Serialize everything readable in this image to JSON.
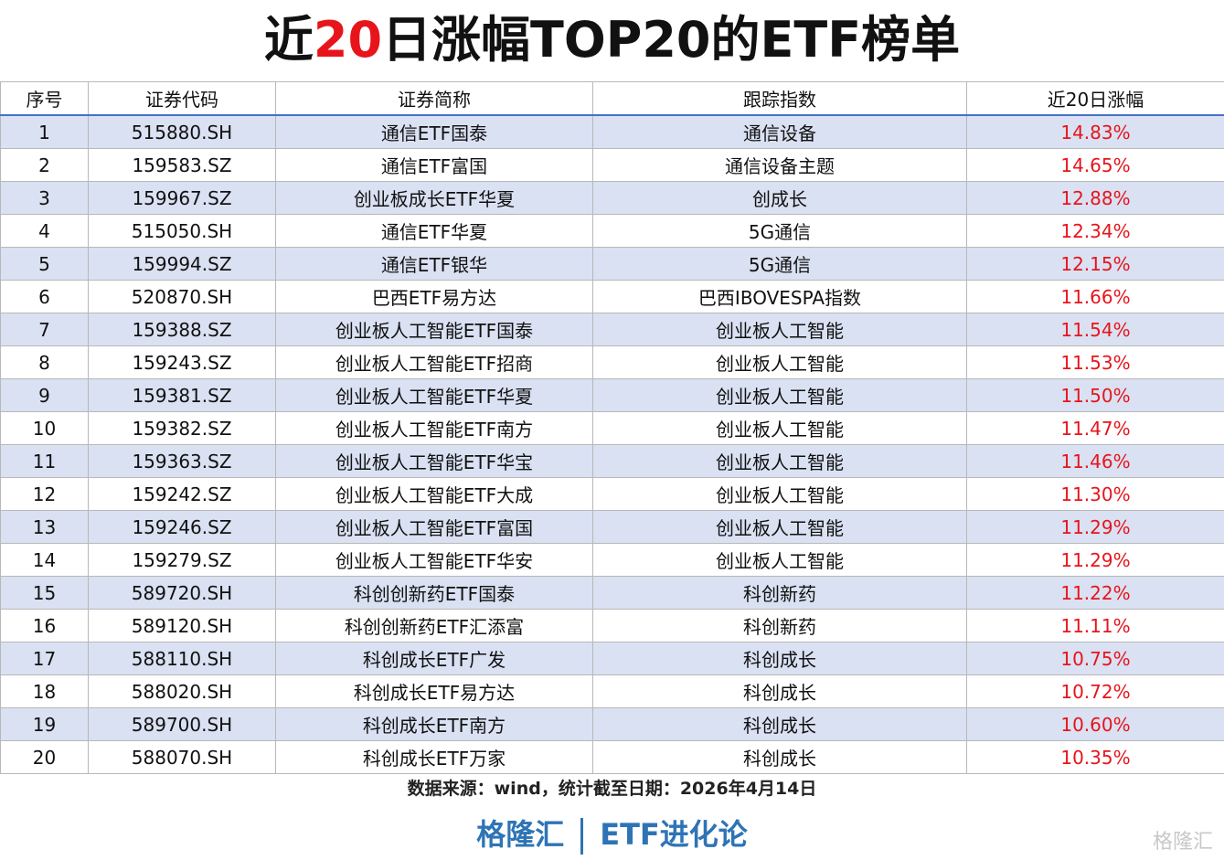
{
  "title": {
    "prefix": "近",
    "highlight": "20",
    "suffix": "日涨幅TOP20的ETF榜单"
  },
  "table": {
    "header": [
      "序号",
      "证券代码",
      "证券简称",
      "跟踪指数",
      "近20日涨幅"
    ],
    "rows": [
      [
        "1",
        "515880.SH",
        "通信ETF国泰",
        "通信设备",
        "14.83%"
      ],
      [
        "2",
        "159583.SZ",
        "通信ETF富国",
        "通信设备主题",
        "14.65%"
      ],
      [
        "3",
        "159967.SZ",
        "创业板成长ETF华夏",
        "创成长",
        "12.88%"
      ],
      [
        "4",
        "515050.SH",
        "通信ETF华夏",
        "5G通信",
        "12.34%"
      ],
      [
        "5",
        "159994.SZ",
        "通信ETF银华",
        "5G通信",
        "12.15%"
      ],
      [
        "6",
        "520870.SH",
        "巴西ETF易方达",
        "巴西IBOVESPA指数",
        "11.66%"
      ],
      [
        "7",
        "159388.SZ",
        "创业板人工智能ETF国泰",
        "创业板人工智能",
        "11.54%"
      ],
      [
        "8",
        "159243.SZ",
        "创业板人工智能ETF招商",
        "创业板人工智能",
        "11.53%"
      ],
      [
        "9",
        "159381.SZ",
        "创业板人工智能ETF华夏",
        "创业板人工智能",
        "11.50%"
      ],
      [
        "10",
        "159382.SZ",
        "创业板人工智能ETF南方",
        "创业板人工智能",
        "11.47%"
      ],
      [
        "11",
        "159363.SZ",
        "创业板人工智能ETF华宝",
        "创业板人工智能",
        "11.46%"
      ],
      [
        "12",
        "159242.SZ",
        "创业板人工智能ETF大成",
        "创业板人工智能",
        "11.30%"
      ],
      [
        "13",
        "159246.SZ",
        "创业板人工智能ETF富国",
        "创业板人工智能",
        "11.29%"
      ],
      [
        "14",
        "159279.SZ",
        "创业板人工智能ETF华安",
        "创业板人工智能",
        "11.29%"
      ],
      [
        "15",
        "589720.SH",
        "科创创新药ETF国泰",
        "科创新药",
        "11.22%"
      ],
      [
        "16",
        "589120.SH",
        "科创创新药ETF汇添富",
        "科创新药",
        "11.11%"
      ],
      [
        "17",
        "588110.SH",
        "科创成长ETF广发",
        "科创成长",
        "10.75%"
      ],
      [
        "18",
        "588020.SH",
        "科创成长ETF易方达",
        "科创成长",
        "10.72%"
      ],
      [
        "19",
        "589700.SH",
        "科创成长ETF南方",
        "科创成长",
        "10.60%"
      ],
      [
        "20",
        "588070.SH",
        "科创成长ETF万家",
        "科创成长",
        "10.35%"
      ]
    ]
  },
  "footer": {
    "source": "数据来源：wind，统计截至日期：2026年4月14日",
    "brand": "格隆汇",
    "column": "ETF进化论"
  },
  "watermark": "格隆汇"
}
